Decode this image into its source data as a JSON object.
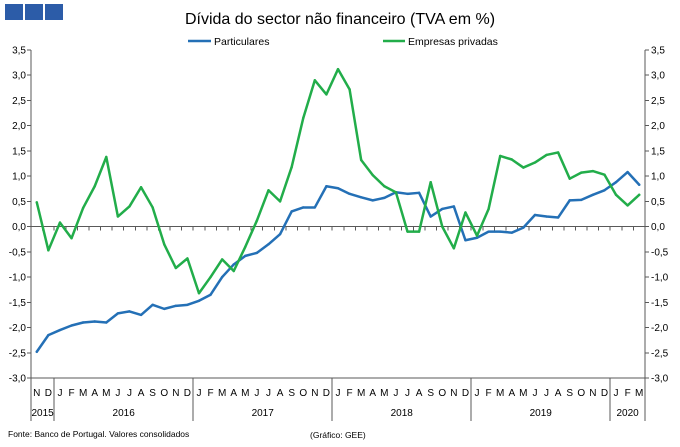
{
  "logo": {
    "color": "#2c5ca8"
  },
  "chart_data": {
    "type": "line",
    "title": "Dívida do sector não financeiro (TVA em %)",
    "categories": [
      "N",
      "D",
      "J",
      "F",
      "M",
      "A",
      "M",
      "J",
      "J",
      "A",
      "S",
      "O",
      "N",
      "D",
      "J",
      "F",
      "M",
      "A",
      "M",
      "J",
      "J",
      "A",
      "S",
      "O",
      "N",
      "D",
      "J",
      "F",
      "M",
      "A",
      "M",
      "J",
      "J",
      "A",
      "S",
      "O",
      "N",
      "D",
      "J",
      "F",
      "M",
      "A",
      "M",
      "J",
      "J",
      "A",
      "S",
      "O",
      "N",
      "D",
      "J",
      "F",
      "M"
    ],
    "years": [
      {
        "label": "2015",
        "from": 0,
        "to": 1
      },
      {
        "label": "2016",
        "from": 2,
        "to": 13
      },
      {
        "label": "2017",
        "from": 14,
        "to": 25
      },
      {
        "label": "2018",
        "from": 26,
        "to": 37
      },
      {
        "label": "2019",
        "from": 38,
        "to": 49
      },
      {
        "label": "2020",
        "from": 50,
        "to": 52
      }
    ],
    "series": [
      {
        "name": "Particulares",
        "color": "#2470b6",
        "values": [
          -2.48,
          -2.15,
          -2.05,
          -1.96,
          -1.9,
          -1.88,
          -1.9,
          -1.72,
          -1.68,
          -1.75,
          -1.55,
          -1.63,
          -1.57,
          -1.55,
          -1.47,
          -1.35,
          -1.0,
          -0.75,
          -0.58,
          -0.52,
          -0.35,
          -0.15,
          0.3,
          0.38,
          0.38,
          0.8,
          0.76,
          0.65,
          0.58,
          0.52,
          0.57,
          0.68,
          0.65,
          0.67,
          0.2,
          0.35,
          0.4,
          -0.27,
          -0.22,
          -0.1,
          -0.1,
          -0.12,
          -0.02,
          0.23,
          0.2,
          0.18,
          0.52,
          0.53,
          0.63,
          0.72,
          0.88,
          1.08,
          0.83
        ]
      },
      {
        "name": "Empresas privadas",
        "color": "#22ad4a",
        "values": [
          0.48,
          -0.47,
          0.08,
          -0.23,
          0.37,
          0.8,
          1.38,
          0.2,
          0.4,
          0.78,
          0.38,
          -0.35,
          -0.82,
          -0.63,
          -1.32,
          -1.0,
          -0.65,
          -0.88,
          -0.4,
          0.12,
          0.72,
          0.5,
          1.18,
          2.15,
          2.9,
          2.62,
          3.12,
          2.72,
          1.32,
          1.02,
          0.8,
          0.68,
          -0.1,
          -0.1,
          0.88,
          0.0,
          -0.43,
          0.28,
          -0.18,
          0.35,
          1.4,
          1.33,
          1.17,
          1.27,
          1.42,
          1.47,
          0.95,
          1.07,
          1.1,
          1.03,
          0.63,
          0.42,
          0.63
        ]
      }
    ],
    "ylim": [
      -3.0,
      3.5
    ],
    "yticks": [
      {
        "value": 3.5,
        "label": "3,5"
      },
      {
        "value": 3.0,
        "label": "3,0"
      },
      {
        "value": 2.5,
        "label": "2,5"
      },
      {
        "value": 2.0,
        "label": "2,0"
      },
      {
        "value": 1.5,
        "label": "1,5"
      },
      {
        "value": 1.0,
        "label": "1,0"
      },
      {
        "value": 0.5,
        "label": "0,5"
      },
      {
        "value": 0.0,
        "label": "0,0"
      },
      {
        "value": -0.5,
        "label": "-0,5"
      },
      {
        "value": -1.0,
        "label": "-1,0"
      },
      {
        "value": -1.5,
        "label": "-1,5"
      },
      {
        "value": -2.0,
        "label": "-2,0"
      },
      {
        "value": -2.5,
        "label": "-2,5"
      },
      {
        "value": -3.0,
        "label": "-3,0"
      }
    ],
    "y_labels_both_sides": true,
    "legend": "top",
    "grid": false
  },
  "footer": {
    "source": "Fonte: Banco de Portugal. Valores consolidados",
    "credit": "(Gráfico: GEE)"
  }
}
